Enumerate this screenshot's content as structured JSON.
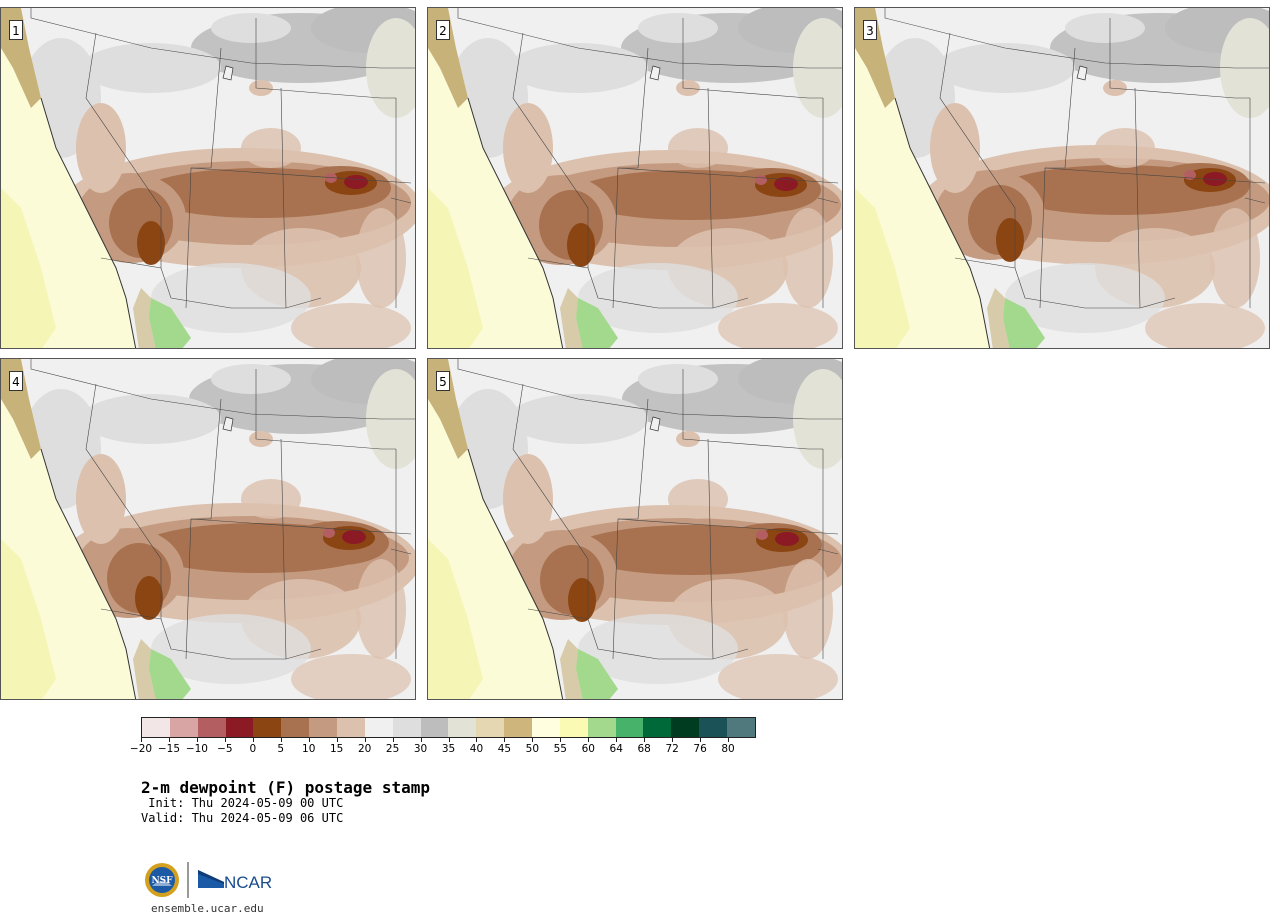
{
  "panels": [
    {
      "label": "1",
      "variant": 0
    },
    {
      "label": "2",
      "variant": 1
    },
    {
      "label": "3",
      "variant": 2
    },
    {
      "label": "4",
      "variant": 3
    },
    {
      "label": "5",
      "variant": 4
    }
  ],
  "colorbar": {
    "colors": [
      "#f3e6e6",
      "#d8a4a4",
      "#b35f62",
      "#8c1a24",
      "#8b4513",
      "#a87250",
      "#c49b80",
      "#dcc1ae",
      "#f0f0f0",
      "#dedede",
      "#bdbdbd",
      "#e2e2d6",
      "#e6d7b3",
      "#cdb57b",
      "#ffffe0",
      "#fafab4",
      "#a3d98c",
      "#47b36a",
      "#00693a",
      "#003d20",
      "#1a5257",
      "#4f797c"
    ],
    "ticks": [
      "−20",
      "−15",
      "−10",
      "−5",
      "0",
      "5",
      "10",
      "15",
      "20",
      "25",
      "30",
      "35",
      "40",
      "45",
      "50",
      "55",
      "60",
      "64",
      "68",
      "72",
      "76",
      "80"
    ]
  },
  "title": "2-m dewpoint (F) postage stamp",
  "init": " Init: Thu 2024-05-09 00 UTC",
  "valid": "Valid: Thu 2024-05-09 06 UTC",
  "logo": {
    "left_mark": "NSF",
    "right_mark": "NCAR",
    "colors": {
      "nsf_gold": "#d4a11e",
      "nsf_blue": "#1c5aa6",
      "ncar_blue": "#1a5aa6"
    }
  },
  "site": "ensemble.ucar.edu"
}
